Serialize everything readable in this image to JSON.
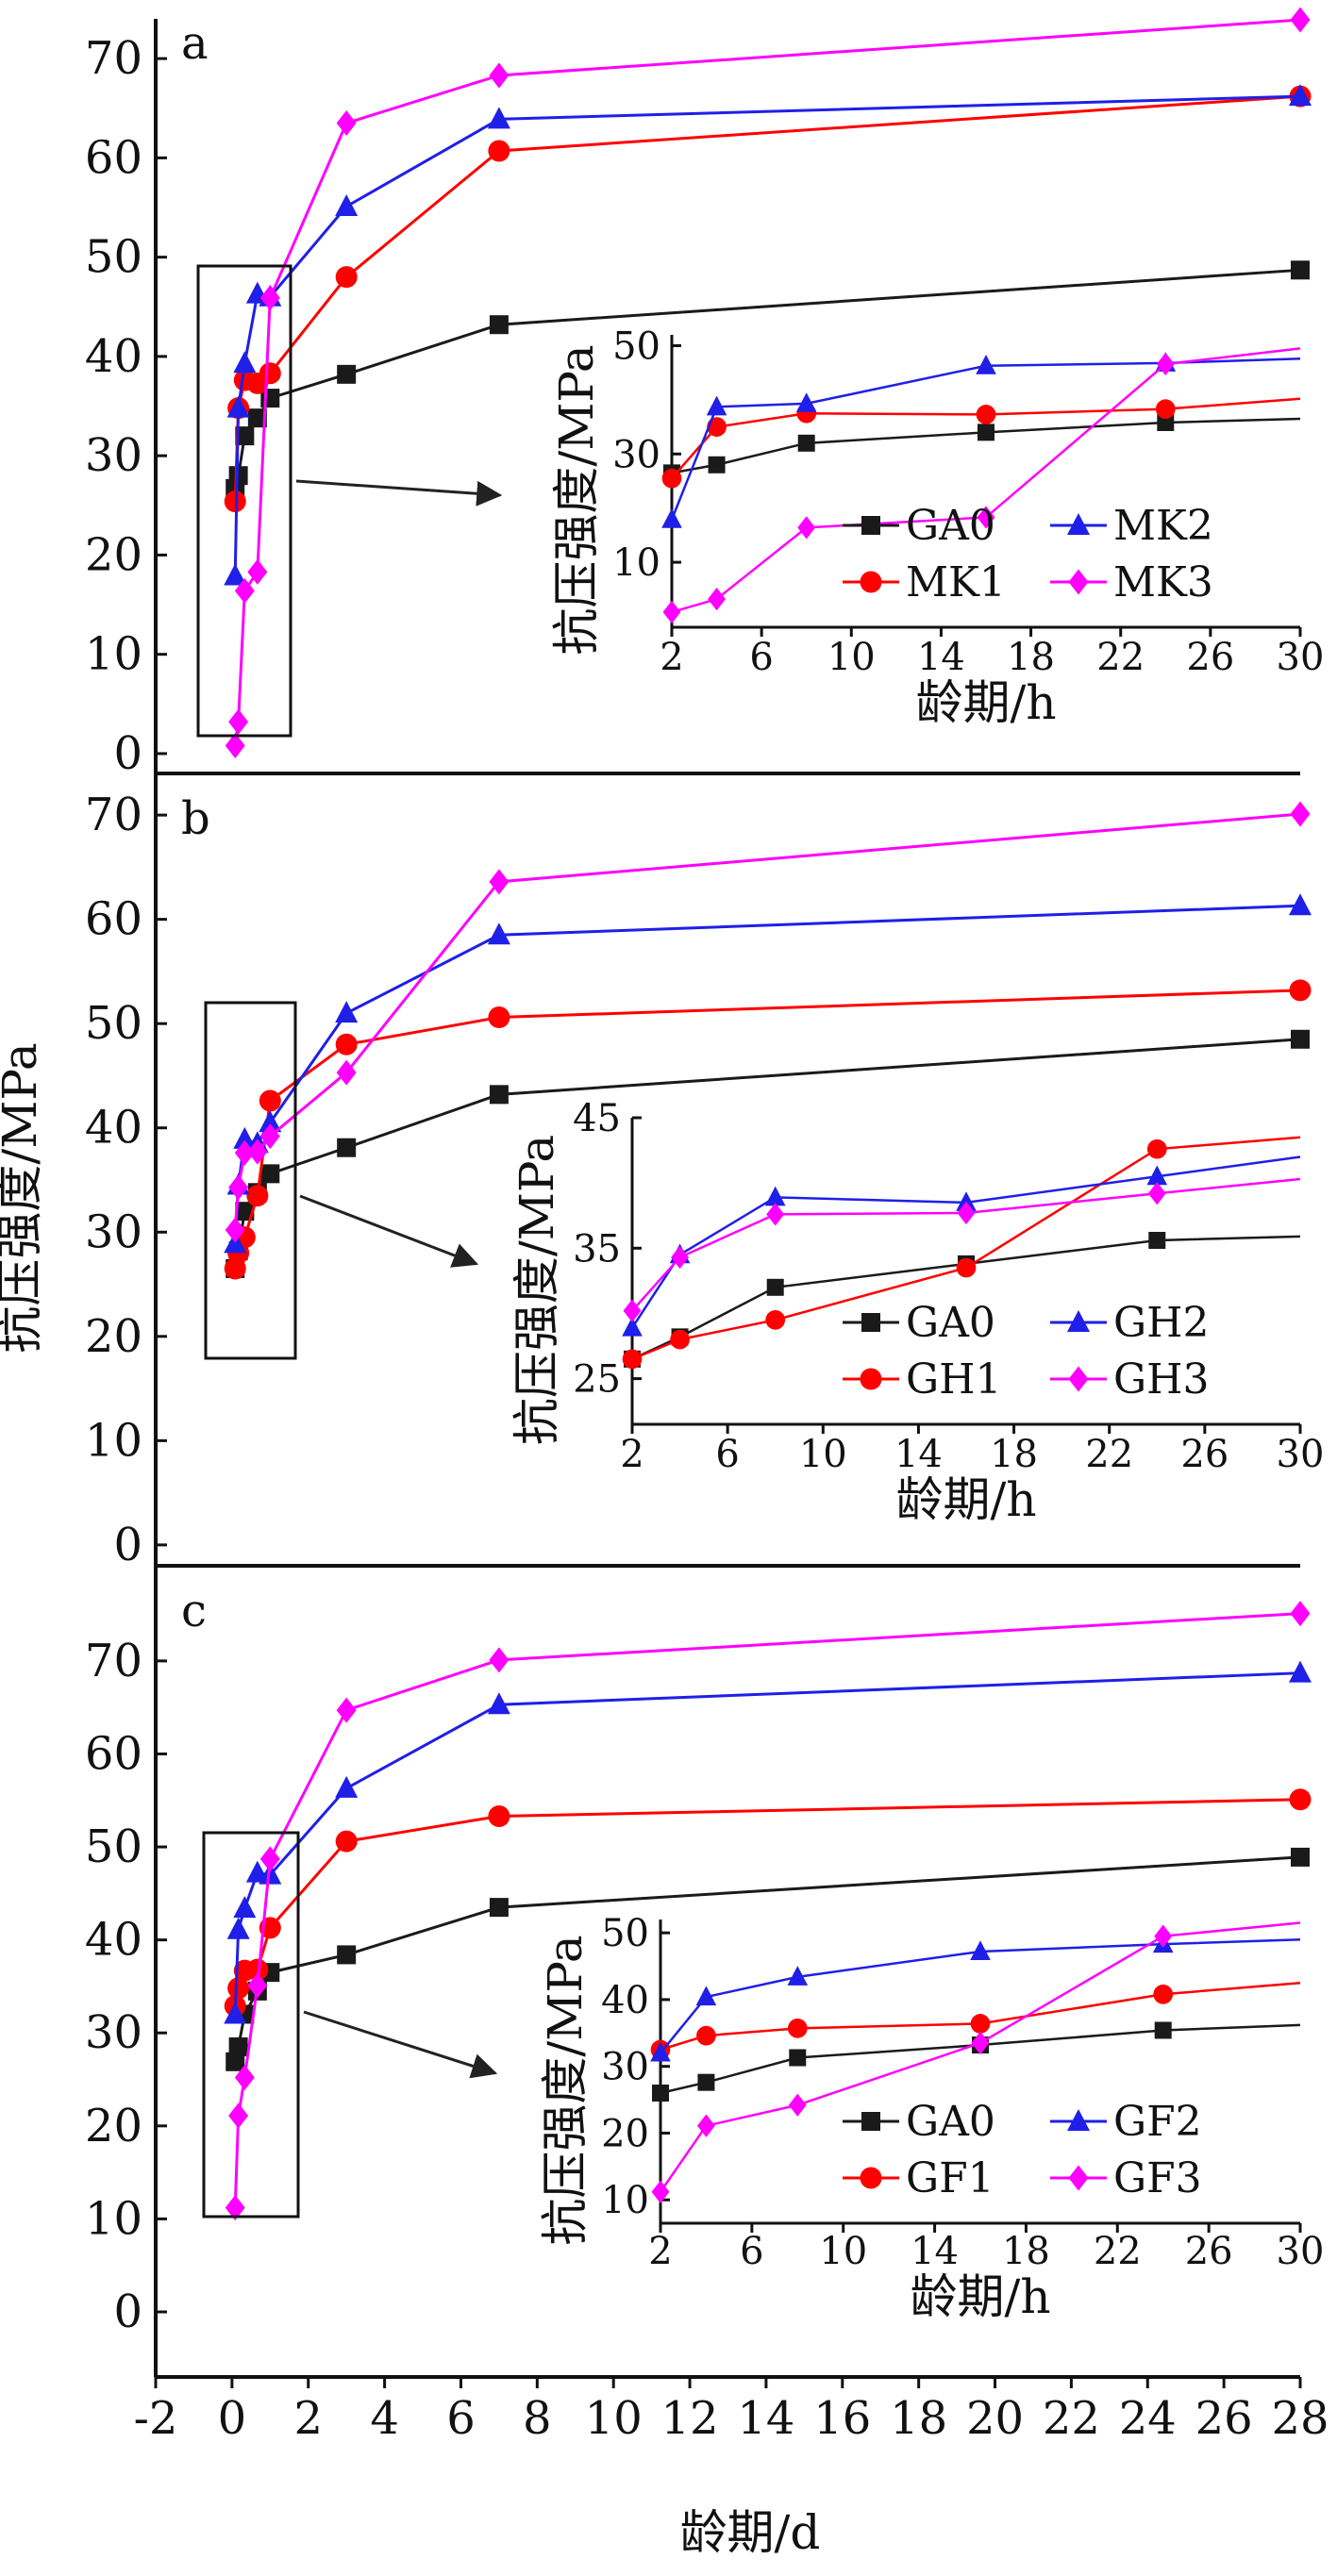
{
  "colors": {
    "GA0": "#1a1a1a",
    "red": "#ff0000",
    "blue": "#1f1fe8",
    "magenta": "#ff00ff"
  },
  "x_axis": {
    "label": "龄期/d",
    "ticks": [
      "-2",
      "0",
      "2",
      "4",
      "6",
      "8",
      "10",
      "12",
      "14",
      "16",
      "18",
      "20",
      "22",
      "24",
      "26",
      "28"
    ]
  },
  "y_axis_label": "抗压强度/MPa",
  "chart_data": [
    {
      "type": "line",
      "panel": "a",
      "x": [
        0.083,
        0.167,
        0.333,
        0.667,
        1,
        3,
        7,
        28
      ],
      "ylim": [
        -2,
        74
      ],
      "yticks": [
        "0",
        "10",
        "20",
        "30",
        "40",
        "50",
        "60",
        "70"
      ],
      "series": [
        {
          "name": "GA0",
          "marker": "square",
          "values": [
            26.7,
            28.0,
            32.0,
            33.8,
            35.8,
            38.2,
            43.2,
            48.7
          ]
        },
        {
          "name": "MK1",
          "marker": "circle",
          "values": [
            25.4,
            34.8,
            37.6,
            37.3,
            38.3,
            48.0,
            60.7,
            66.2
          ]
        },
        {
          "name": "MK2",
          "marker": "triangle",
          "values": [
            17.9,
            34.8,
            39.3,
            46.3,
            46.0,
            55.1,
            63.9,
            66.2
          ]
        },
        {
          "name": "MK3",
          "marker": "diamond",
          "values": [
            0.8,
            3.2,
            16.4,
            18.3,
            45.9,
            63.5,
            68.3,
            73.9
          ]
        }
      ],
      "inset": {
        "xlabel": "龄期/h",
        "ylabel": "抗压强度/MPa",
        "x": [
          2,
          4,
          8,
          16,
          24,
          30
        ],
        "xticks": [
          "2",
          "6",
          "10",
          "14",
          "18",
          "22",
          "26",
          "30"
        ],
        "yticks": [
          "10",
          "30",
          "50"
        ],
        "ylim": [
          -2,
          52
        ],
        "series": [
          {
            "name": "GA0",
            "values": [
              26.5,
              28.0,
              32.0,
              34.0,
              35.8,
              36.5
            ]
          },
          {
            "name": "MK1",
            "values": [
              25.5,
              35.0,
              37.5,
              37.3,
              38.3,
              40.2
            ]
          },
          {
            "name": "MK2",
            "values": [
              17.9,
              38.7,
              39.3,
              46.3,
              46.8,
              47.6
            ]
          },
          {
            "name": "MK3",
            "values": [
              0.8,
              3.2,
              16.4,
              18.3,
              46.6,
              49.5
            ]
          }
        ]
      }
    },
    {
      "type": "line",
      "panel": "b",
      "x": [
        0.083,
        0.167,
        0.333,
        0.667,
        1,
        3,
        7,
        28
      ],
      "ylim": [
        -2,
        72
      ],
      "yticks": [
        "0",
        "10",
        "20",
        "30",
        "40",
        "50",
        "60",
        "70"
      ],
      "series": [
        {
          "name": "GA0",
          "marker": "square",
          "values": [
            26.5,
            28.2,
            32.0,
            33.8,
            35.6,
            38.1,
            43.2,
            48.5
          ]
        },
        {
          "name": "GH1",
          "marker": "circle",
          "values": [
            26.5,
            28.0,
            29.5,
            33.5,
            42.6,
            48.0,
            50.6,
            53.2
          ]
        },
        {
          "name": "GH2",
          "marker": "triangle",
          "values": [
            28.9,
            34.5,
            38.9,
            38.5,
            40.5,
            51.0,
            58.5,
            61.3
          ]
        },
        {
          "name": "GH3",
          "marker": "diamond",
          "values": [
            30.2,
            34.3,
            37.6,
            37.7,
            39.2,
            45.3,
            63.6,
            70.1
          ]
        }
      ],
      "inset": {
        "xlabel": "龄期/h",
        "ylabel": "抗压强度/MPa",
        "x": [
          2,
          4,
          8,
          16,
          24,
          30
        ],
        "xticks": [
          "2",
          "6",
          "10",
          "14",
          "18",
          "22",
          "26",
          "30"
        ],
        "yticks": [
          "25",
          "35",
          "45"
        ],
        "ylim": [
          21.5,
          45
        ],
        "series": [
          {
            "name": "GA0",
            "values": [
              26.5,
              28.2,
              32.0,
              33.8,
              35.6,
              35.9
            ]
          },
          {
            "name": "GH1",
            "values": [
              26.5,
              28.0,
              29.5,
              33.5,
              42.6,
              43.5
            ]
          },
          {
            "name": "GH2",
            "values": [
              28.9,
              34.5,
              38.9,
              38.5,
              40.5,
              42.0
            ]
          },
          {
            "name": "GH3",
            "values": [
              30.2,
              34.3,
              37.6,
              37.7,
              39.2,
              40.3
            ]
          }
        ]
      }
    },
    {
      "type": "line",
      "panel": "c",
      "x": [
        0.083,
        0.167,
        0.333,
        0.667,
        1,
        3,
        7,
        28
      ],
      "ylim": [
        -7,
        78
      ],
      "yticks": [
        "0",
        "10",
        "20",
        "30",
        "40",
        "50",
        "60",
        "70"
      ],
      "series": [
        {
          "name": "GA0",
          "marker": "square",
          "values": [
            26.9,
            28.5,
            32.0,
            34.5,
            36.5,
            38.4,
            43.5,
            48.9
          ]
        },
        {
          "name": "GF1",
          "marker": "circle",
          "values": [
            32.9,
            34.8,
            36.7,
            36.8,
            41.3,
            50.6,
            53.3,
            55.1
          ]
        },
        {
          "name": "GF2",
          "marker": "triangle",
          "values": [
            32.0,
            41.1,
            43.4,
            47.2,
            47.0,
            56.3,
            65.3,
            68.7
          ]
        },
        {
          "name": "GF3",
          "marker": "diamond",
          "values": [
            11.2,
            21.1,
            25.2,
            35.1,
            48.7,
            64.7,
            70.1,
            75.1
          ]
        }
      ],
      "inset": {
        "xlabel": "龄期/h",
        "ylabel": "抗压强度/MPa",
        "x": [
          2,
          4,
          8,
          16,
          24,
          30
        ],
        "xticks": [
          "2",
          "6",
          "10",
          "14",
          "18",
          "22",
          "26",
          "30"
        ],
        "yticks": [
          "10",
          "20",
          "30",
          "40",
          "50"
        ],
        "ylim": [
          6.5,
          52
        ],
        "series": [
          {
            "name": "GA0",
            "values": [
              26.0,
              27.6,
              31.3,
              33.2,
              35.4,
              36.2
            ]
          },
          {
            "name": "GF1",
            "values": [
              32.5,
              34.6,
              35.7,
              36.4,
              40.8,
              42.5
            ]
          },
          {
            "name": "GF2",
            "values": [
              32.0,
              40.4,
              43.4,
              47.2,
              48.3,
              49.0
            ]
          },
          {
            "name": "GF3",
            "values": [
              11.2,
              21.1,
              24.2,
              33.5,
              49.5,
              51.5
            ]
          }
        ]
      }
    }
  ]
}
